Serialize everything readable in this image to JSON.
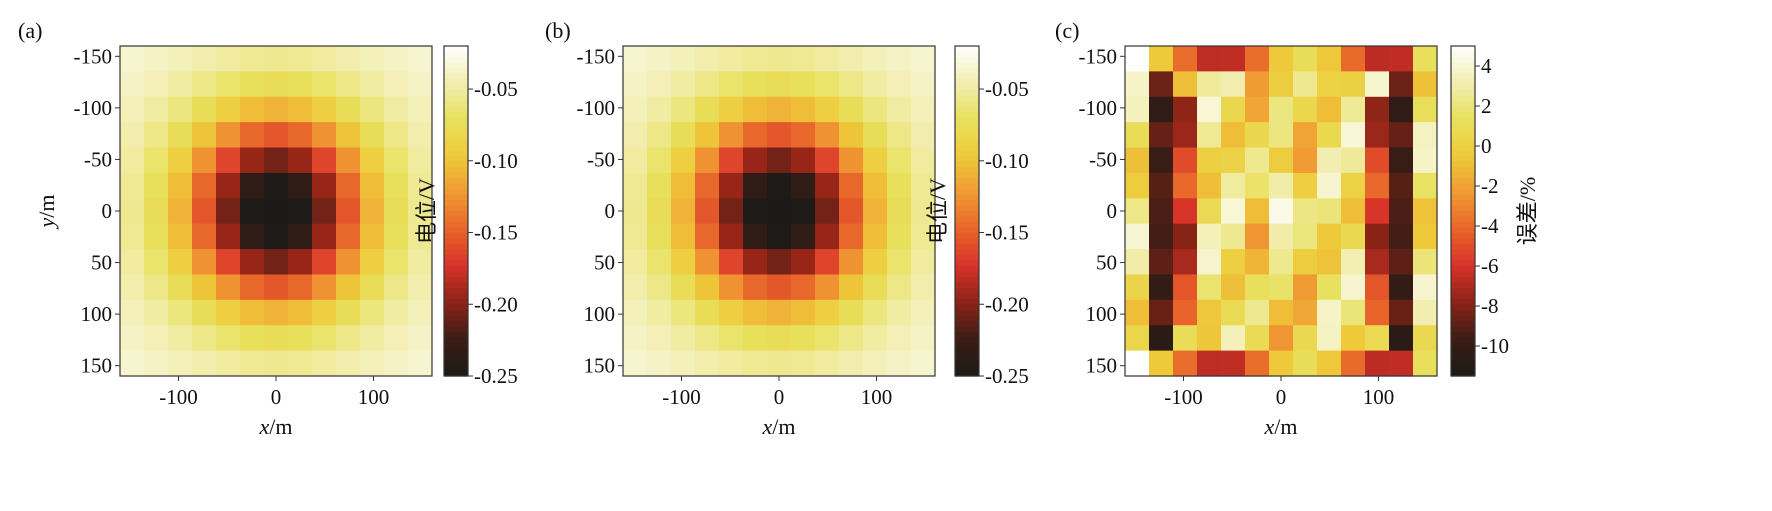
{
  "chart_data": [
    {
      "type": "heatmap",
      "panel_label": "(a)",
      "xlabel_var": "x",
      "xlabel_unit": "/m",
      "ylabel_var": "y",
      "ylabel_unit": "/m",
      "xlim": [
        -160,
        160
      ],
      "ylim": [
        -160,
        160
      ],
      "x_ticks": [
        -100,
        0,
        100
      ],
      "y_ticks": [
        -150,
        -100,
        -50,
        0,
        50,
        100,
        150
      ],
      "y_inverted": true,
      "grid_size": 13,
      "field": "potential",
      "value_range": [
        -0.25,
        -0.02
      ],
      "colorbar": {
        "label": "电位/V",
        "vmin": -0.25,
        "vmax": -0.02,
        "ticks": [
          -0.05,
          -0.1,
          -0.15,
          -0.2,
          -0.25
        ],
        "tick_labels": [
          "-0.05",
          "-0.10",
          "-0.15",
          "-0.20",
          "-0.25"
        ]
      }
    },
    {
      "type": "heatmap",
      "panel_label": "(b)",
      "xlabel_var": "x",
      "xlabel_unit": "/m",
      "ylabel_var": "",
      "ylabel_unit": "",
      "xlim": [
        -160,
        160
      ],
      "ylim": [
        -160,
        160
      ],
      "x_ticks": [
        -100,
        0,
        100
      ],
      "y_ticks": [
        -150,
        -100,
        -50,
        0,
        50,
        100,
        150
      ],
      "y_inverted": true,
      "grid_size": 13,
      "field": "potential",
      "value_range": [
        -0.25,
        -0.02
      ],
      "colorbar": {
        "label": "电位/V",
        "vmin": -0.25,
        "vmax": -0.02,
        "ticks": [
          -0.05,
          -0.1,
          -0.15,
          -0.2,
          -0.25
        ],
        "tick_labels": [
          "-0.05",
          "-0.10",
          "-0.15",
          "-0.20",
          "-0.25"
        ]
      }
    },
    {
      "type": "heatmap",
      "panel_label": "(c)",
      "xlabel_var": "x",
      "xlabel_unit": "/m",
      "ylabel_var": "",
      "ylabel_unit": "",
      "xlim": [
        -160,
        160
      ],
      "ylim": [
        -160,
        160
      ],
      "x_ticks": [
        -100,
        0,
        100
      ],
      "y_ticks": [
        -150,
        -100,
        -50,
        0,
        50,
        100,
        150
      ],
      "y_inverted": true,
      "grid_size": 13,
      "field": "error",
      "value_range": [
        -11.5,
        5
      ],
      "colorbar": {
        "label": "误差/%",
        "vmin": -11.5,
        "vmax": 5,
        "ticks": [
          4,
          2,
          0,
          -2,
          -4,
          -6,
          -8,
          -10
        ],
        "tick_labels": [
          "4",
          "2",
          "0",
          "-2",
          "-4",
          "-6",
          "-8",
          "-10"
        ]
      }
    }
  ],
  "colormap": [
    "#1c1a18",
    "#3a1d16",
    "#8a2416",
    "#d8312a",
    "#e8652a",
    "#f09a33",
    "#eeca3a",
    "#e8e05c",
    "#f2eeb0",
    "#ffffff"
  ]
}
